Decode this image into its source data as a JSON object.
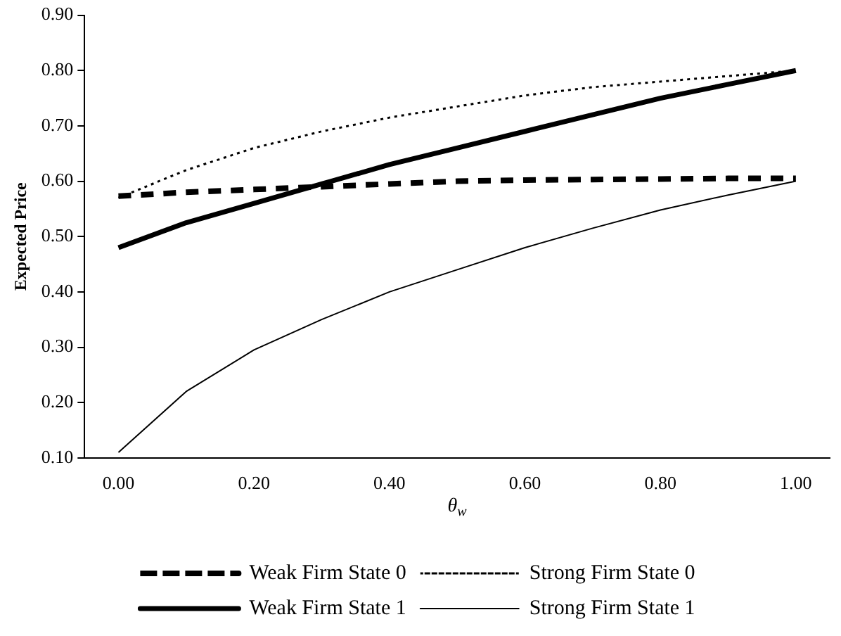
{
  "chart_data": {
    "type": "line",
    "xlabel": "θ$_{w}$",
    "ylabel": "Expected Price",
    "categories": [
      "0.00",
      null,
      "0.20",
      null,
      "0.40",
      null,
      "0.60",
      null,
      "0.80",
      null,
      "1.00"
    ],
    "series": [
      {
        "name": "Weak Firm State 0",
        "color": "#000000",
        "line_style": "dashed",
        "values": [
          0.573,
          0.58,
          0.585,
          0.59,
          0.595,
          0.6,
          0.602,
          0.603,
          0.604,
          0.605,
          0.605
        ]
      },
      {
        "name": "Strong Firm State 0",
        "color": "#000000",
        "line_style": "dotted",
        "values": [
          0.57,
          0.62,
          0.66,
          0.69,
          0.715,
          0.735,
          0.755,
          0.77,
          0.78,
          0.79,
          0.8
        ]
      },
      {
        "name": "Weak Firm State 1",
        "color": "#000000",
        "line_style": "solid",
        "values": [
          0.48,
          0.525,
          0.56,
          0.595,
          0.63,
          0.66,
          0.69,
          0.72,
          0.75,
          0.775,
          0.8
        ]
      },
      {
        "name": "Strong Firm State 1",
        "color": "#000000",
        "line_style": "solid",
        "values": [
          0.11,
          0.22,
          0.295,
          0.35,
          0.4,
          0.44,
          0.48,
          0.515,
          0.548,
          0.575,
          0.6
        ]
      }
    ],
    "ylim": [
      0.1,
      0.9
    ],
    "yticks": [
      {
        "value": 0.1,
        "label": "0.10"
      },
      {
        "value": 0.2,
        "label": "0.20"
      },
      {
        "value": 0.3,
        "label": "0.30"
      },
      {
        "value": 0.4,
        "label": "0.40"
      },
      {
        "value": 0.5,
        "label": "0.50"
      },
      {
        "value": 0.6,
        "label": "0.60"
      },
      {
        "value": 0.7,
        "label": "0.70"
      },
      {
        "value": 0.8,
        "label": "0.80"
      },
      {
        "value": 0.9,
        "label": "0.90"
      }
    ],
    "grid": false,
    "legend": "bottom",
    "marker": "none"
  }
}
